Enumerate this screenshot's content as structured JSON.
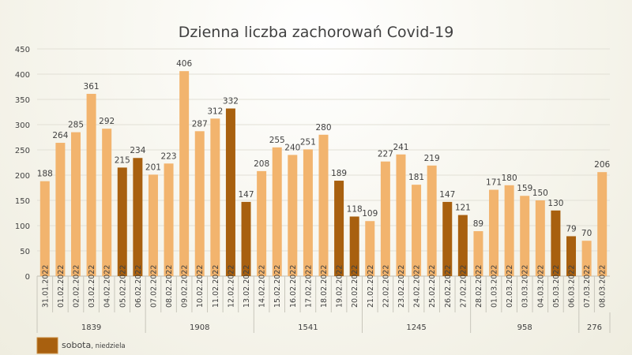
{
  "chart_data": {
    "type": "bar",
    "title": "Dzienna liczba zachorowań Covid-19",
    "xlabel": "",
    "ylabel": "",
    "ylim": [
      0,
      450
    ],
    "yticks": [
      0,
      50,
      100,
      150,
      200,
      250,
      300,
      350,
      400,
      450
    ],
    "grid": true,
    "categories": [
      "31.01.2022",
      "01.02.2022",
      "02.02.2022",
      "03.02.2022",
      "04.02.2022",
      "05.02.2022",
      "06.02.2022",
      "07.02.2022",
      "08.02.2022",
      "09.02.2022",
      "10.02.2022",
      "11.02.2022",
      "12.02.2022",
      "13.02.2022",
      "14.02.2022",
      "15.02.2022",
      "16.02.2022",
      "17.02.2022",
      "18.02.2022",
      "19.02.2022",
      "20.02.2022",
      "21.02.2022",
      "22.02.2022",
      "23.02.2022",
      "24.02.2022",
      "25.02.2022",
      "26.02.2022",
      "27.02.2022",
      "28.02.2022",
      "01.03.2022",
      "02.03.2022",
      "03.03.2022",
      "04.03.2022",
      "05.03.2022",
      "06.03.2022",
      "07.03.2022",
      "08.03.2022"
    ],
    "values": [
      188,
      264,
      285,
      361,
      292,
      215,
      234,
      201,
      223,
      406,
      287,
      312,
      332,
      147,
      208,
      255,
      240,
      251,
      280,
      189,
      118,
      109,
      227,
      241,
      181,
      219,
      147,
      121,
      89,
      171,
      180,
      159,
      150,
      130,
      79,
      70,
      206
    ],
    "weekend": [
      false,
      false,
      false,
      false,
      false,
      true,
      true,
      false,
      false,
      false,
      false,
      false,
      true,
      true,
      false,
      false,
      false,
      false,
      false,
      true,
      true,
      false,
      false,
      false,
      false,
      false,
      true,
      true,
      false,
      false,
      false,
      false,
      false,
      true,
      true,
      false,
      false
    ],
    "groups": [
      {
        "label": "1839",
        "count": 7
      },
      {
        "label": "1908",
        "count": 7
      },
      {
        "label": "1541",
        "count": 7
      },
      {
        "label": "1245",
        "count": 7
      },
      {
        "label": "958",
        "count": 7
      },
      {
        "label": "276",
        "count": 2
      }
    ],
    "colors": {
      "weekday": "#f2b46e",
      "weekend": "#a8600f"
    },
    "legend": {
      "placement": "bottom-left",
      "label_main": "sobota",
      "label_rest": ", niedziela"
    }
  }
}
